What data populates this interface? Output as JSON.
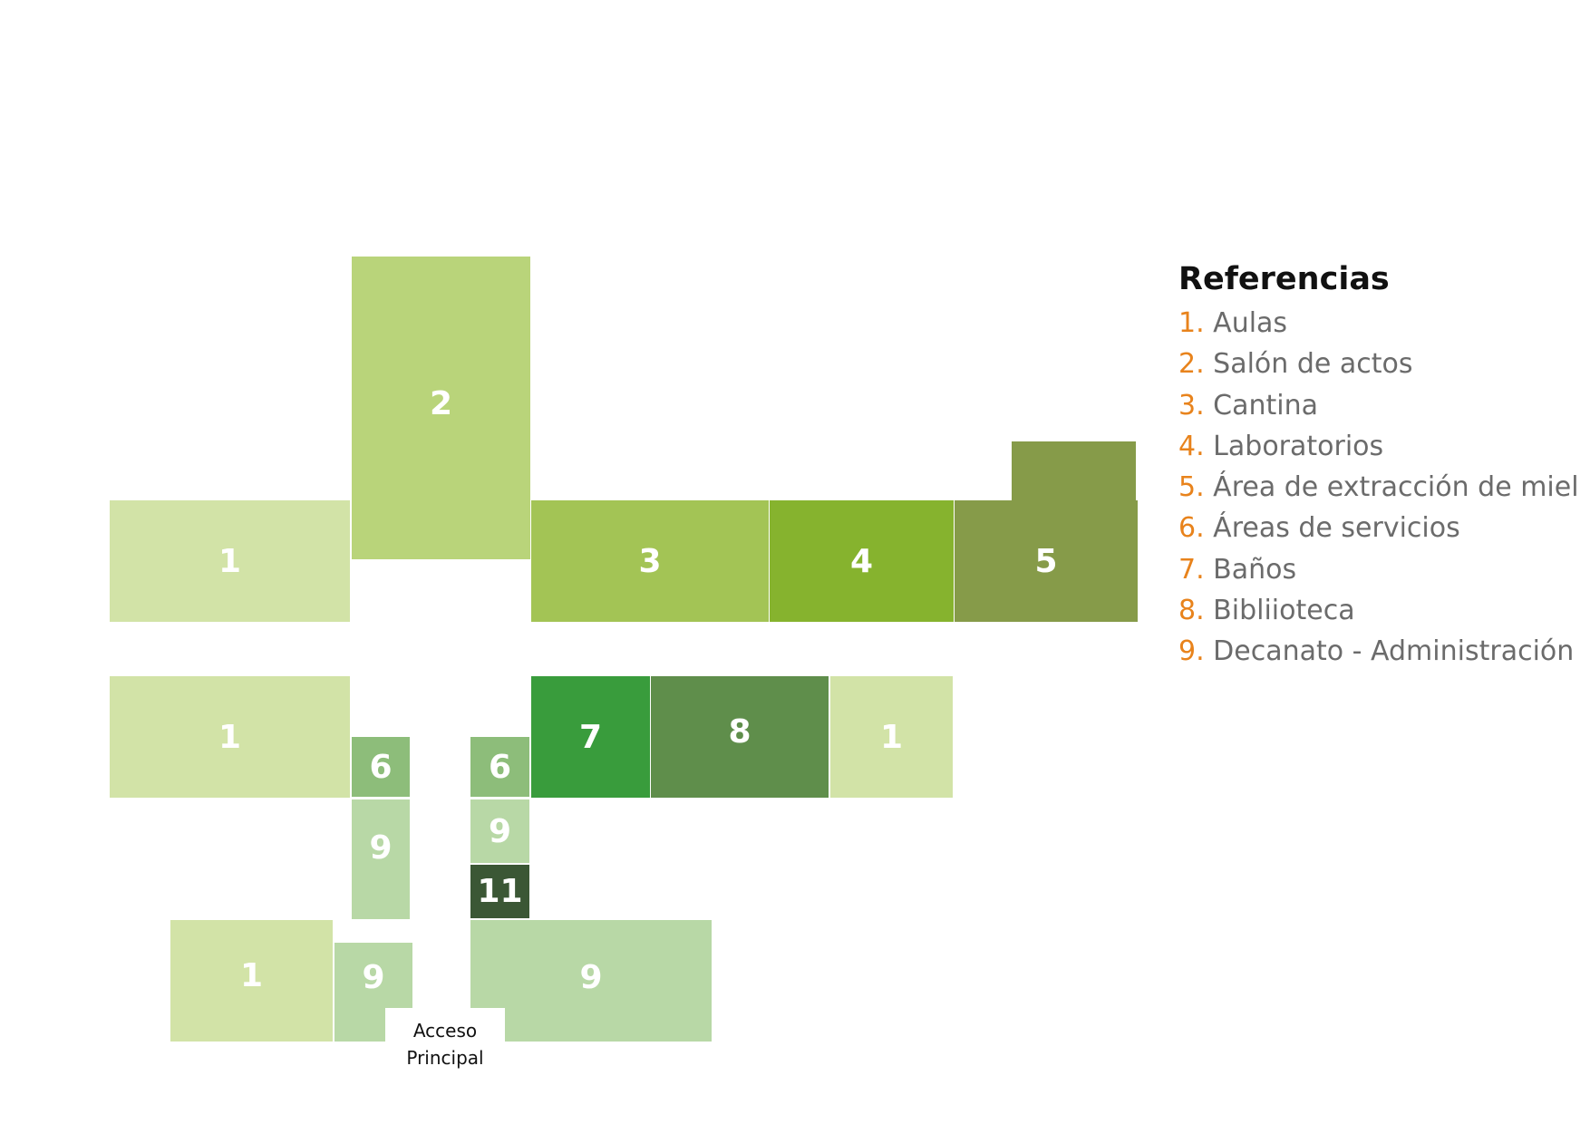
{
  "colors": {
    "aulas": "#d2e3a7",
    "salon": "#b9d47a",
    "cantina": "#a3c455",
    "laboratorios": "#86b32e",
    "extraccion": "#869b49",
    "servicios": "#8dbd7a",
    "banos": "#399c3c",
    "biblioteca": "#5f8e4b",
    "decanato": "#b8d8a6",
    "dark": "#3b5735",
    "legend_number": "#e8831c",
    "legend_text": "#6b6b6b"
  },
  "plan": {
    "labels": {
      "aulas": "1",
      "salon": "2",
      "cantina": "3",
      "laboratorios": "4",
      "extraccion": "5",
      "servicios": "6",
      "banos": "7",
      "biblioteca": "8",
      "decanato": "9",
      "dark": "11"
    },
    "access_line1": "Acceso",
    "access_line2": "Principal"
  },
  "legend": {
    "title": "Referencias",
    "items": [
      {
        "num": "1.",
        "label": "Aulas"
      },
      {
        "num": "2.",
        "label": "Salón de actos"
      },
      {
        "num": "3.",
        "label": "Cantina"
      },
      {
        "num": "4.",
        "label": "Laboratorios"
      },
      {
        "num": "5.",
        "label": "Área de extracción de miel"
      },
      {
        "num": "6.",
        "label": "Áreas de servicios"
      },
      {
        "num": "7.",
        "label": "Baños"
      },
      {
        "num": "8.",
        "label": "Bibliioteca"
      },
      {
        "num": "9.",
        "label": "Decanato - Administración"
      }
    ]
  }
}
